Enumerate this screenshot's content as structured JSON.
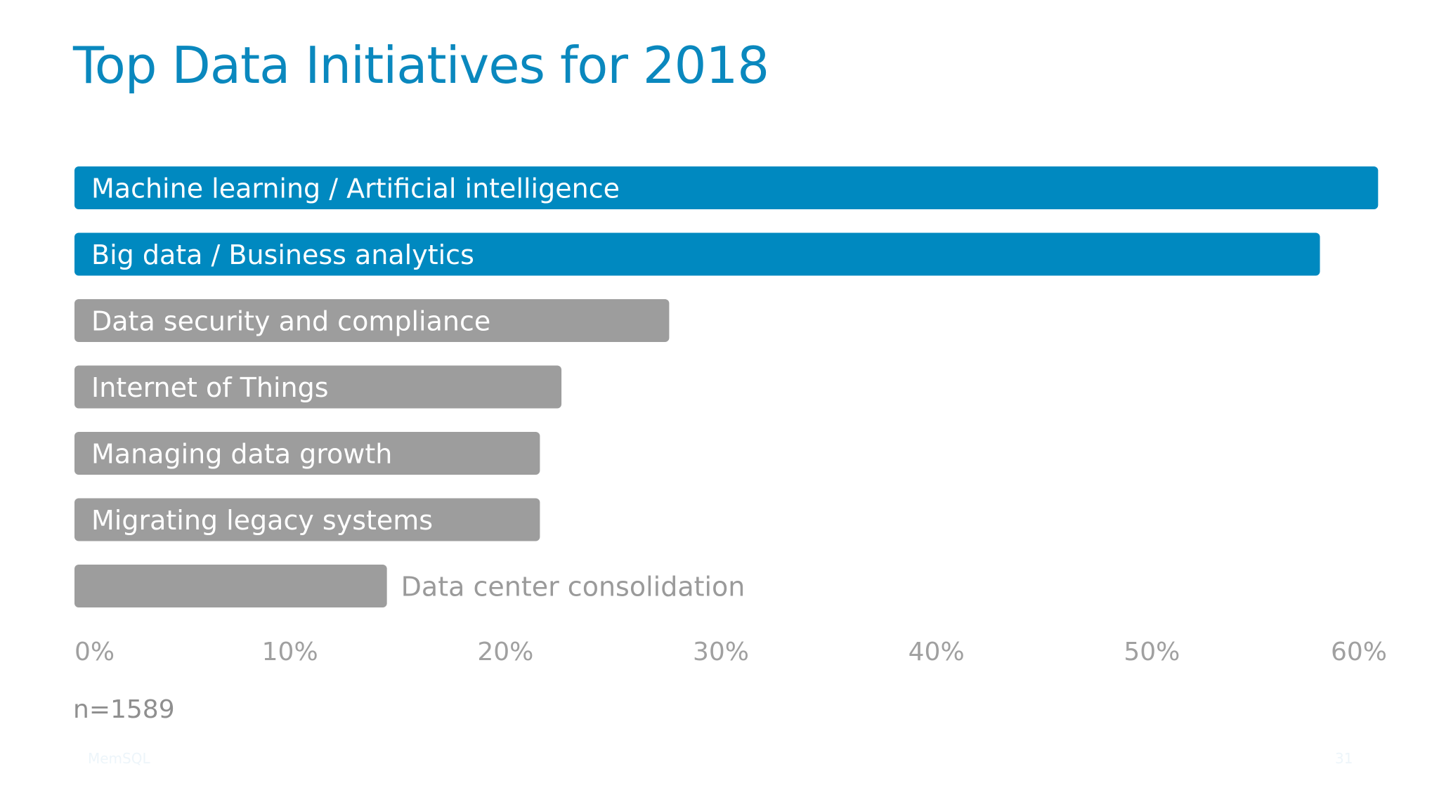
{
  "slide": {
    "title": "Top Data Initiatives for 2018",
    "note": "n=1589",
    "footer_brand": "MemSQL",
    "page_number": "31"
  },
  "colors": {
    "title": "#0a88be",
    "highlight_bar": "#0089c0",
    "default_bar": "#9d9d9d",
    "bar_text": "#ffffff",
    "outside_text": "#9a9a9a",
    "tick_text": "#a0a0a0"
  },
  "chart_data": {
    "type": "bar",
    "orientation": "horizontal",
    "title": "Top Data Initiatives for 2018",
    "categories": [
      "Machine learning / Artificial intelligence",
      "Big data / Business analytics",
      "Data security and compliance",
      "Internet of Things",
      "Managing data growth",
      "Migrating legacy systems",
      "Data center consolidation"
    ],
    "values": [
      60.5,
      57.8,
      27.6,
      22.6,
      21.6,
      21.6,
      14.5
    ],
    "highlighted": [
      true,
      true,
      false,
      false,
      false,
      false,
      false
    ],
    "label_outside_bar": [
      false,
      false,
      false,
      false,
      false,
      false,
      true
    ],
    "xlim": [
      0,
      60
    ],
    "xticks": [
      "0%",
      "10%",
      "20%",
      "30%",
      "40%",
      "50%",
      "60%"
    ],
    "grid": false,
    "legend": "none"
  }
}
